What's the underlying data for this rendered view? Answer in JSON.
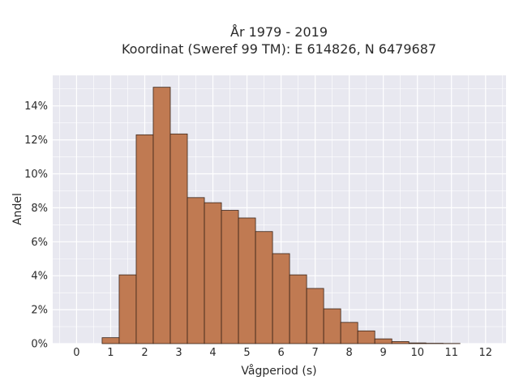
{
  "chart_data": {
    "type": "bar",
    "title_line1": "År 1979 - 2019",
    "title_line2": "Koordinat (Sweref 99 TM): E 614826, N 6479687",
    "xlabel": "Vågperiod (s)",
    "ylabel": "Andel",
    "bin_width": 0.5,
    "bins": [
      {
        "x": 0.0,
        "value": 0.0
      },
      {
        "x": 0.5,
        "value": 0.0
      },
      {
        "x": 1.0,
        "value": 0.35
      },
      {
        "x": 1.5,
        "value": 4.05
      },
      {
        "x": 2.0,
        "value": 12.3
      },
      {
        "x": 2.5,
        "value": 15.1
      },
      {
        "x": 3.0,
        "value": 12.35
      },
      {
        "x": 3.5,
        "value": 8.6
      },
      {
        "x": 4.0,
        "value": 8.3
      },
      {
        "x": 4.5,
        "value": 7.85
      },
      {
        "x": 5.0,
        "value": 7.4
      },
      {
        "x": 5.5,
        "value": 6.6
      },
      {
        "x": 6.0,
        "value": 5.3
      },
      {
        "x": 6.5,
        "value": 4.05
      },
      {
        "x": 7.0,
        "value": 3.25
      },
      {
        "x": 7.5,
        "value": 2.05
      },
      {
        "x": 8.0,
        "value": 1.25
      },
      {
        "x": 8.5,
        "value": 0.75
      },
      {
        "x": 9.0,
        "value": 0.28
      },
      {
        "x": 9.5,
        "value": 0.12
      },
      {
        "x": 10.0,
        "value": 0.04
      },
      {
        "x": 10.5,
        "value": 0.02
      },
      {
        "x": 11.0,
        "value": 0.01
      }
    ],
    "xlim": [
      -0.7,
      12.6
    ],
    "ylim": [
      0,
      15.8
    ],
    "x_ticks": [
      0,
      1,
      2,
      3,
      4,
      5,
      6,
      7,
      8,
      9,
      10,
      11,
      12
    ],
    "x_tick_labels": [
      "0",
      "1",
      "2",
      "3",
      "4",
      "5",
      "6",
      "7",
      "8",
      "9",
      "10",
      "11",
      "12"
    ],
    "y_ticks": [
      0,
      2,
      4,
      6,
      8,
      10,
      12,
      14
    ],
    "y_tick_labels": [
      "0%",
      "2%",
      "4%",
      "6%",
      "8%",
      "10%",
      "12%",
      "14%"
    ],
    "grid": true,
    "legend": "none",
    "colors": {
      "bar_fill": "#c07a52",
      "bar_stroke": "#3a2418",
      "plot_bg": "#e8e8f0",
      "grid": "#ffffff"
    }
  }
}
